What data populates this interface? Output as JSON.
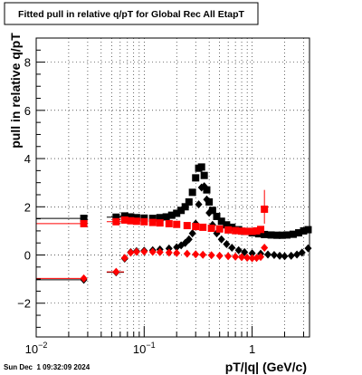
{
  "title": "Fitted pull in relative q/pT for Global Rec All EtapT",
  "timestamp": "Sun Dec  1 09:32:09 2024",
  "chart_data": {
    "type": "scatter",
    "title": "Fitted pull in relative q/pT for Global Rec All EtapT",
    "xlabel": "pT/|q| (GeV/c)",
    "ylabel": "pull in relative q/pT",
    "xscale": "log",
    "xlim": [
      0.01,
      3.4
    ],
    "ylim": [
      -3.4,
      9.0
    ],
    "x_ticks": [
      {
        "value": 0.01,
        "label": "10",
        "exp": "−2"
      },
      {
        "value": 0.1,
        "label": "10",
        "exp": "−1"
      },
      {
        "value": 1,
        "label": "1",
        "exp": ""
      }
    ],
    "y_ticks": [
      -2,
      0,
      2,
      4,
      6,
      8
    ],
    "grid": true,
    "series": [
      {
        "color": "#000000",
        "marker": "square",
        "role": "sigma",
        "points": [
          {
            "x": 0.0276,
            "y": 1.52,
            "xerr": [
              0.01,
              0.0276
            ]
          },
          {
            "x": 0.055,
            "y": 1.57,
            "xerr": [
              0.045,
              0.065
            ]
          },
          {
            "x": 0.066,
            "y": 1.62,
            "xerr": [
              0.06,
              0.072
            ]
          },
          {
            "x": 0.075,
            "y": 1.58
          },
          {
            "x": 0.085,
            "y": 1.55
          },
          {
            "x": 0.1,
            "y": 1.53
          },
          {
            "x": 0.12,
            "y": 1.52
          },
          {
            "x": 0.14,
            "y": 1.55
          },
          {
            "x": 0.16,
            "y": 1.58
          },
          {
            "x": 0.18,
            "y": 1.65
          },
          {
            "x": 0.2,
            "y": 1.73
          },
          {
            "x": 0.22,
            "y": 1.85
          },
          {
            "x": 0.24,
            "y": 2.0
          },
          {
            "x": 0.26,
            "y": 2.2
          },
          {
            "x": 0.28,
            "y": 2.6
          },
          {
            "x": 0.3,
            "y": 3.2
          },
          {
            "x": 0.32,
            "y": 3.6
          },
          {
            "x": 0.34,
            "y": 3.65
          },
          {
            "x": 0.36,
            "y": 3.3
          },
          {
            "x": 0.38,
            "y": 2.7
          },
          {
            "x": 0.4,
            "y": 2.2
          },
          {
            "x": 0.43,
            "y": 1.85
          },
          {
            "x": 0.47,
            "y": 1.6
          },
          {
            "x": 0.52,
            "y": 1.4
          },
          {
            "x": 0.58,
            "y": 1.25
          },
          {
            "x": 0.65,
            "y": 1.15
          },
          {
            "x": 0.75,
            "y": 1.05
          },
          {
            "x": 0.85,
            "y": 0.98
          },
          {
            "x": 1.0,
            "y": 0.92
          },
          {
            "x": 1.15,
            "y": 0.88
          },
          {
            "x": 1.3,
            "y": 0.85
          },
          {
            "x": 1.5,
            "y": 0.83
          },
          {
            "x": 1.7,
            "y": 0.82
          },
          {
            "x": 1.9,
            "y": 0.82
          },
          {
            "x": 2.1,
            "y": 0.83
          },
          {
            "x": 2.4,
            "y": 0.86
          },
          {
            "x": 2.7,
            "y": 0.92
          },
          {
            "x": 3.0,
            "y": 1.0
          },
          {
            "x": 3.3,
            "y": 1.05
          }
        ]
      },
      {
        "color": "#000000",
        "marker": "circle",
        "role": "mean",
        "points": [
          {
            "x": 0.0276,
            "y": -1.03,
            "xerr": [
              0.01,
              0.0276
            ]
          },
          {
            "x": 0.055,
            "y": -0.72,
            "xerr": [
              0.045,
              0.065
            ]
          },
          {
            "x": 0.066,
            "y": -0.15
          },
          {
            "x": 0.075,
            "y": 0.12
          },
          {
            "x": 0.085,
            "y": 0.16
          },
          {
            "x": 0.1,
            "y": 0.18
          },
          {
            "x": 0.12,
            "y": 0.2
          },
          {
            "x": 0.14,
            "y": 0.23
          },
          {
            "x": 0.17,
            "y": 0.27
          },
          {
            "x": 0.2,
            "y": 0.32
          },
          {
            "x": 0.22,
            "y": 0.4
          },
          {
            "x": 0.24,
            "y": 0.5
          },
          {
            "x": 0.26,
            "y": 0.65
          },
          {
            "x": 0.28,
            "y": 0.9
          },
          {
            "x": 0.3,
            "y": 1.3
          },
          {
            "x": 0.32,
            "y": 2.1
          },
          {
            "x": 0.34,
            "y": 2.8
          },
          {
            "x": 0.36,
            "y": 2.85
          },
          {
            "x": 0.38,
            "y": 2.3
          },
          {
            "x": 0.4,
            "y": 1.75
          },
          {
            "x": 0.43,
            "y": 1.25
          },
          {
            "x": 0.47,
            "y": 0.9
          },
          {
            "x": 0.52,
            "y": 0.65
          },
          {
            "x": 0.58,
            "y": 0.45
          },
          {
            "x": 0.65,
            "y": 0.3
          },
          {
            "x": 0.75,
            "y": 0.2
          },
          {
            "x": 0.85,
            "y": 0.12
          },
          {
            "x": 1.0,
            "y": 0.07
          },
          {
            "x": 1.2,
            "y": 0.05
          },
          {
            "x": 1.4,
            "y": 0.02
          },
          {
            "x": 1.6,
            "y": 0.0
          },
          {
            "x": 1.8,
            "y": -0.03
          },
          {
            "x": 2.0,
            "y": -0.05
          },
          {
            "x": 2.3,
            "y": -0.03
          },
          {
            "x": 2.6,
            "y": 0.02
          },
          {
            "x": 2.9,
            "y": 0.1
          },
          {
            "x": 3.3,
            "y": 0.28
          }
        ]
      },
      {
        "color": "#ff0000",
        "marker": "square",
        "role": "sigma",
        "points": [
          {
            "x": 0.0276,
            "y": 1.3,
            "xerr": [
              0.01,
              0.0276
            ]
          },
          {
            "x": 0.055,
            "y": 1.38,
            "xerr": [
              0.045,
              0.065
            ]
          },
          {
            "x": 0.066,
            "y": 1.45
          },
          {
            "x": 0.075,
            "y": 1.42
          },
          {
            "x": 0.085,
            "y": 1.4
          },
          {
            "x": 0.1,
            "y": 1.38
          },
          {
            "x": 0.12,
            "y": 1.35
          },
          {
            "x": 0.14,
            "y": 1.33
          },
          {
            "x": 0.17,
            "y": 1.3
          },
          {
            "x": 0.2,
            "y": 1.27
          },
          {
            "x": 0.25,
            "y": 1.22
          },
          {
            "x": 0.3,
            "y": 1.18
          },
          {
            "x": 0.35,
            "y": 1.15
          },
          {
            "x": 0.42,
            "y": 1.11
          },
          {
            "x": 0.5,
            "y": 1.08
          },
          {
            "x": 0.6,
            "y": 1.04
          },
          {
            "x": 0.7,
            "y": 1.01
          },
          {
            "x": 0.8,
            "y": 0.99
          },
          {
            "x": 0.9,
            "y": 0.98
          },
          {
            "x": 1.0,
            "y": 0.98
          },
          {
            "x": 1.1,
            "y": 1.0
          },
          {
            "x": 1.2,
            "y": 1.06
          },
          {
            "x": 1.3,
            "y": 1.9,
            "yerr": [
              1.3,
              2.7
            ]
          }
        ]
      },
      {
        "color": "#ff0000",
        "marker": "circle",
        "role": "mean",
        "points": [
          {
            "x": 0.0276,
            "y": -0.97,
            "xerr": [
              0.01,
              0.0276
            ]
          },
          {
            "x": 0.055,
            "y": -0.7,
            "xerr": [
              0.045,
              0.065
            ]
          },
          {
            "x": 0.066,
            "y": -0.12
          },
          {
            "x": 0.075,
            "y": 0.1
          },
          {
            "x": 0.085,
            "y": 0.13
          },
          {
            "x": 0.1,
            "y": 0.14
          },
          {
            "x": 0.12,
            "y": 0.13
          },
          {
            "x": 0.14,
            "y": 0.12
          },
          {
            "x": 0.17,
            "y": 0.1
          },
          {
            "x": 0.2,
            "y": 0.08
          },
          {
            "x": 0.25,
            "y": 0.05
          },
          {
            "x": 0.3,
            "y": 0.03
          },
          {
            "x": 0.35,
            "y": 0.01
          },
          {
            "x": 0.42,
            "y": -0.01
          },
          {
            "x": 0.5,
            "y": -0.03
          },
          {
            "x": 0.6,
            "y": -0.05
          },
          {
            "x": 0.7,
            "y": -0.07
          },
          {
            "x": 0.8,
            "y": -0.09
          },
          {
            "x": 0.9,
            "y": -0.11
          },
          {
            "x": 1.0,
            "y": -0.13
          },
          {
            "x": 1.1,
            "y": -0.12
          },
          {
            "x": 1.2,
            "y": -0.08
          },
          {
            "x": 1.3,
            "y": 0.3,
            "yerr": [
              0.15,
              0.45
            ]
          }
        ]
      }
    ]
  }
}
